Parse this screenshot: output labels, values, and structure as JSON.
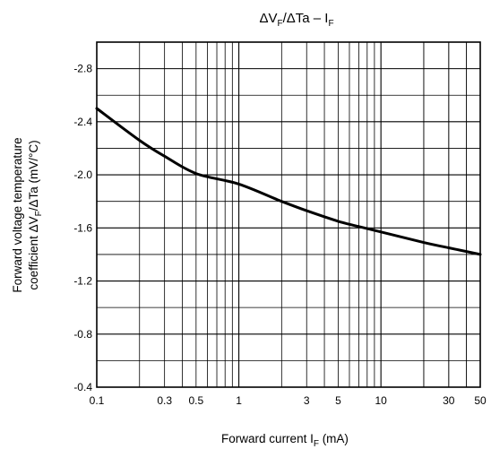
{
  "chart_data": {
    "type": "line",
    "title": {
      "main": "ΔV",
      "sub": "F",
      "rest": "/ΔTa – I",
      "sub2": "F"
    },
    "xscale": "log",
    "xlim": [
      0.1,
      50
    ],
    "ylim": [
      -0.4,
      -3.0
    ],
    "grid": true,
    "xticks": [
      {
        "v": 0.1,
        "label": "0.1"
      },
      {
        "v": 0.3,
        "label": "0.3"
      },
      {
        "v": 0.5,
        "label": "0.5"
      },
      {
        "v": 1,
        "label": "1"
      },
      {
        "v": 3,
        "label": "3"
      },
      {
        "v": 5,
        "label": "5"
      },
      {
        "v": 10,
        "label": "10"
      },
      {
        "v": 30,
        "label": "30"
      },
      {
        "v": 50,
        "label": "50"
      }
    ],
    "yticks": [
      {
        "v": -0.4,
        "label": "-0.4"
      },
      {
        "v": -0.8,
        "label": "-0.8"
      },
      {
        "v": -1.2,
        "label": "-1.2"
      },
      {
        "v": -1.6,
        "label": "-1.6"
      },
      {
        "v": -2.0,
        "label": "-2.0"
      },
      {
        "v": -2.4,
        "label": "-2.4"
      },
      {
        "v": -2.8,
        "label": "-2.8"
      }
    ],
    "xlabel": {
      "text": "Forward current   I",
      "sub": "F",
      "unit": "   (mA)"
    },
    "ylabel": {
      "line1": "Forward voltage temperature",
      "line2_pre": "coefficient    ΔV",
      "line2_sub": "F",
      "line2_post": "/ΔTa   (mV/°C)"
    },
    "series": [
      {
        "x": [
          0.1,
          0.2,
          0.3,
          0.5,
          1,
          2,
          3,
          5,
          7,
          10,
          20,
          30,
          50
        ],
        "y": [
          -2.5,
          -2.26,
          -2.14,
          -2.01,
          -1.93,
          -1.8,
          -1.73,
          -1.65,
          -1.61,
          -1.57,
          -1.49,
          -1.45,
          -1.4
        ]
      }
    ]
  }
}
